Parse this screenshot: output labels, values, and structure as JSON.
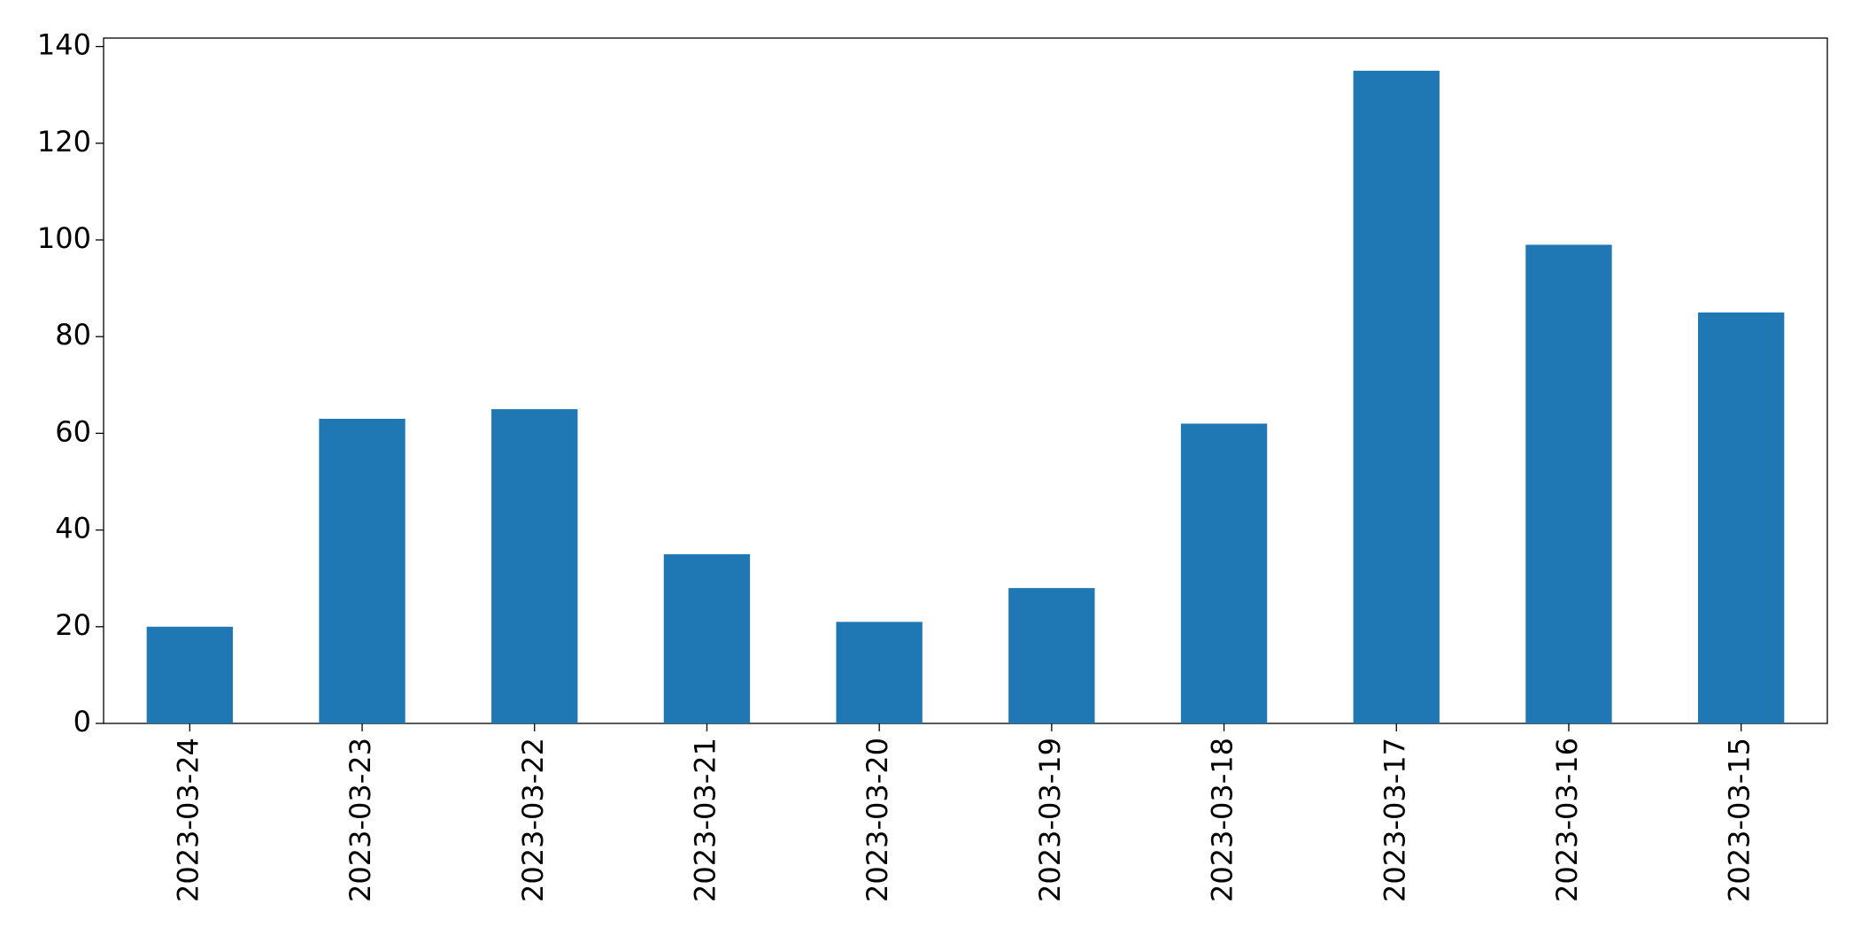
{
  "chart_data": {
    "type": "bar",
    "categories": [
      "2023-03-24",
      "2023-03-23",
      "2023-03-22",
      "2023-03-21",
      "2023-03-20",
      "2023-03-19",
      "2023-03-18",
      "2023-03-17",
      "2023-03-16",
      "2023-03-15"
    ],
    "values": [
      20,
      63,
      65,
      35,
      21,
      28,
      62,
      135,
      99,
      85
    ],
    "color": "#1f77b4",
    "ylim": [
      0,
      141.75
    ],
    "yticks": [
      0,
      20,
      40,
      60,
      80,
      100,
      120,
      140
    ],
    "grid": false
  }
}
